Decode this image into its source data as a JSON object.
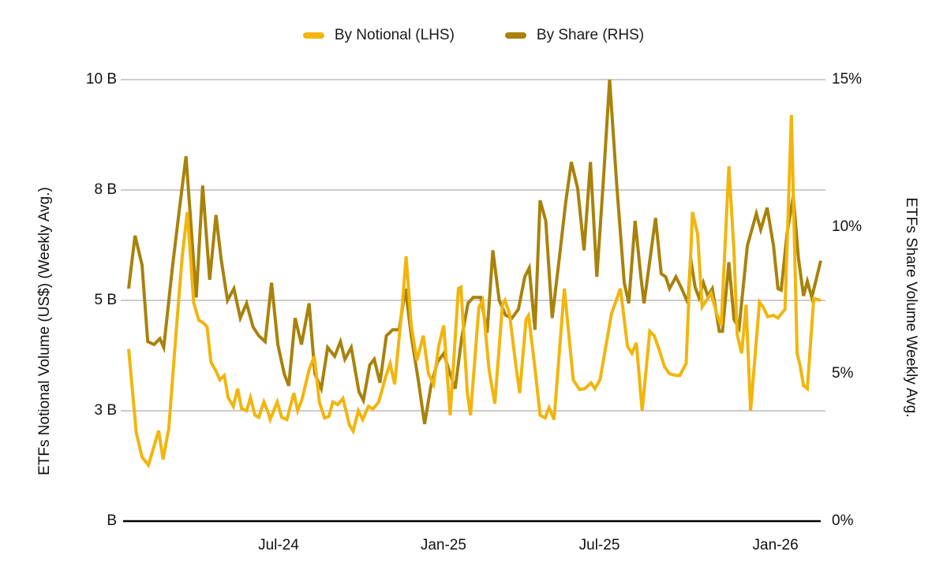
{
  "legend": [
    {
      "label": "By Notional (LHS)",
      "color": "#F2B50D",
      "series": "by_notional"
    },
    {
      "label": "By Share (RHS)",
      "color": "#A8820B",
      "series": "by_share"
    }
  ],
  "axes": {
    "left": {
      "title": "ETFs Notional Volume (US$) (Weekly Avg.)",
      "ticks": [
        {
          "label": "10 B",
          "value": 10
        },
        {
          "label": "8 B",
          "value": 7.5
        },
        {
          "label": "5 B",
          "value": 5
        },
        {
          "label": "3 B",
          "value": 2.5
        },
        {
          "label": "B",
          "value": 0
        }
      ]
    },
    "right": {
      "title": "ETFs Share Volume Weekly Avg.",
      "ticks": [
        {
          "label": "15%",
          "value": 15
        },
        {
          "label": "10%",
          "value": 10
        },
        {
          "label": "5%",
          "value": 5
        },
        {
          "label": "0%",
          "value": 0
        }
      ]
    },
    "x": {
      "ticks": [
        {
          "label": "Jul-24",
          "week": 23.5
        },
        {
          "label": "Jan-25",
          "week": 49.35
        },
        {
          "label": "Jul-25",
          "week": 73.8
        },
        {
          "label": "Jan-26",
          "week": 101.4
        }
      ]
    }
  },
  "chart_data": {
    "type": "line",
    "x_unit": "weeks from start of shown period (~Jan-2024 to ~Feb-2026)",
    "x_range": [
      0,
      108.5
    ],
    "grid": "horizontal",
    "legend_position": "top-center",
    "left_axis": {
      "label": "ETFs Notional Volume (US$) (Weekly Avg.)",
      "unit": "B US$",
      "range": [
        0,
        10
      ]
    },
    "right_axis": {
      "label": "ETFs Share Volume Weekly Avg.",
      "unit": "%",
      "range": [
        0,
        15
      ]
    },
    "series": [
      {
        "name": "By Share (RHS)",
        "axis": "right",
        "unit": "%",
        "color": "#A8820B",
        "points": [
          [
            0,
            7.9
          ],
          [
            1,
            9.7
          ],
          [
            2.1,
            8.7
          ],
          [
            3,
            6.1
          ],
          [
            4,
            6.0
          ],
          [
            4.9,
            6.2
          ],
          [
            5.5,
            5.9
          ],
          [
            6.9,
            8.7
          ],
          [
            7.9,
            10.5
          ],
          [
            9,
            12.4
          ],
          [
            10.6,
            7.6
          ],
          [
            11.6,
            11.4
          ],
          [
            12.7,
            8.2
          ],
          [
            13.7,
            10.4
          ],
          [
            14.5,
            8.9
          ],
          [
            15.5,
            7.5
          ],
          [
            16.5,
            7.9
          ],
          [
            17.5,
            6.9
          ],
          [
            18.5,
            7.4
          ],
          [
            19.5,
            6.6
          ],
          [
            20.4,
            6.3
          ],
          [
            21.4,
            6.1
          ],
          [
            22.4,
            8.1
          ],
          [
            23.4,
            6.0
          ],
          [
            24.4,
            5.0
          ],
          [
            25.1,
            4.6
          ],
          [
            26.1,
            6.9
          ],
          [
            27.1,
            6.0
          ],
          [
            28.3,
            7.4
          ],
          [
            29.2,
            5.0
          ],
          [
            30.2,
            4.5
          ],
          [
            31.2,
            5.9
          ],
          [
            32.3,
            5.6
          ],
          [
            33.2,
            6.1
          ],
          [
            33.9,
            5.5
          ],
          [
            34.9,
            5.9
          ],
          [
            36.1,
            4.4
          ],
          [
            36.8,
            4.1
          ],
          [
            37.8,
            5.3
          ],
          [
            38.5,
            5.5
          ],
          [
            39.4,
            4.7
          ],
          [
            40.4,
            6.3
          ],
          [
            41.4,
            6.5
          ],
          [
            42.4,
            6.5
          ],
          [
            43.4,
            7.9
          ],
          [
            44.3,
            6.3
          ],
          [
            45.4,
            4.8
          ],
          [
            46.4,
            3.3
          ],
          [
            47.4,
            4.6
          ],
          [
            48.4,
            5.4
          ],
          [
            49.4,
            5.7
          ],
          [
            50.4,
            5.0
          ],
          [
            51.2,
            4.5
          ],
          [
            52.2,
            6.2
          ],
          [
            53.2,
            7.4
          ],
          [
            54,
            7.6
          ],
          [
            55.2,
            7.6
          ],
          [
            56.2,
            6.4
          ],
          [
            57.1,
            9.2
          ],
          [
            58.1,
            7.5
          ],
          [
            59.1,
            7.0
          ],
          [
            60.1,
            6.9
          ],
          [
            61.1,
            7.2
          ],
          [
            62.1,
            8.3
          ],
          [
            62.8,
            8.6
          ],
          [
            63.7,
            6.5
          ],
          [
            64.5,
            10.9
          ],
          [
            65.4,
            10.2
          ],
          [
            66.4,
            6.9
          ],
          [
            67.5,
            8.9
          ],
          [
            68.5,
            10.8
          ],
          [
            69.4,
            12.2
          ],
          [
            70.4,
            11.3
          ],
          [
            71.4,
            9.2
          ],
          [
            72.4,
            12.2
          ],
          [
            73.4,
            8.3
          ],
          [
            74.4,
            11.5
          ],
          [
            75.4,
            15.0
          ],
          [
            76.5,
            11.5
          ],
          [
            77.7,
            8.1
          ],
          [
            78.4,
            7.4
          ],
          [
            79.4,
            10.2
          ],
          [
            80.3,
            8.3
          ],
          [
            80.8,
            7.4
          ],
          [
            82.6,
            10.3
          ],
          [
            83.5,
            8.4
          ],
          [
            84.2,
            8.3
          ],
          [
            84.8,
            7.9
          ],
          [
            85.8,
            8.3
          ],
          [
            86.7,
            7.9
          ],
          [
            87.7,
            7.4
          ],
          [
            88.1,
            8.95
          ],
          [
            88.8,
            7.95
          ],
          [
            89.4,
            7.6
          ],
          [
            90.1,
            8.1
          ],
          [
            90.8,
            7.65
          ],
          [
            91.5,
            7.9
          ],
          [
            92.6,
            6.45
          ],
          [
            93.1,
            6.45
          ],
          [
            94.1,
            8.8
          ],
          [
            94.9,
            6.85
          ],
          [
            95.7,
            6.55
          ],
          [
            97,
            9.35
          ],
          [
            98.4,
            10.45
          ],
          [
            99.1,
            9.9
          ],
          [
            100.1,
            10.65
          ],
          [
            101.1,
            9.35
          ],
          [
            101.8,
            7.9
          ],
          [
            102.3,
            7.85
          ],
          [
            103.2,
            9.75
          ],
          [
            104.2,
            11.05
          ],
          [
            105,
            8.95
          ],
          [
            105.8,
            7.65
          ],
          [
            106.4,
            8.15
          ],
          [
            107.1,
            7.6
          ],
          [
            108.5,
            8.85
          ]
        ]
      },
      {
        "name": "By Notional (LHS)",
        "axis": "left",
        "unit": "B US$",
        "color": "#F2B50D",
        "points": [
          [
            0,
            3.9
          ],
          [
            1.2,
            2.0
          ],
          [
            2.1,
            1.45
          ],
          [
            3.1,
            1.27
          ],
          [
            4.7,
            2.05
          ],
          [
            5.4,
            1.4
          ],
          [
            6.3,
            2.1
          ],
          [
            7.4,
            4.2
          ],
          [
            8.4,
            6.0
          ],
          [
            9.2,
            7.0
          ],
          [
            10.2,
            4.95
          ],
          [
            11,
            4.55
          ],
          [
            11.6,
            4.5
          ],
          [
            12.3,
            4.4
          ],
          [
            12.9,
            3.6
          ],
          [
            13.7,
            3.4
          ],
          [
            14.3,
            3.2
          ],
          [
            15,
            3.3
          ],
          [
            15.6,
            2.8
          ],
          [
            16.4,
            2.6
          ],
          [
            17.1,
            3.0
          ],
          [
            17.7,
            2.55
          ],
          [
            18.5,
            2.5
          ],
          [
            19.1,
            2.8
          ],
          [
            19.8,
            2.4
          ],
          [
            20.4,
            2.35
          ],
          [
            21.2,
            2.7
          ],
          [
            21.9,
            2.45
          ],
          [
            22.2,
            2.3
          ],
          [
            23.3,
            2.7
          ],
          [
            24,
            2.35
          ],
          [
            24.8,
            2.3
          ],
          [
            25.9,
            2.9
          ],
          [
            26.5,
            2.5
          ],
          [
            27.2,
            2.77
          ],
          [
            28.3,
            3.43
          ],
          [
            29.1,
            3.73
          ],
          [
            29.9,
            2.7
          ],
          [
            30.7,
            2.34
          ],
          [
            31.4,
            2.37
          ],
          [
            32,
            2.7
          ],
          [
            32.8,
            2.64
          ],
          [
            33.6,
            2.78
          ],
          [
            34.6,
            2.18
          ],
          [
            35.2,
            2.04
          ],
          [
            36,
            2.5
          ],
          [
            36.7,
            2.3
          ],
          [
            37.6,
            2.6
          ],
          [
            38.3,
            2.54
          ],
          [
            39.2,
            2.7
          ],
          [
            40.3,
            3.27
          ],
          [
            41,
            3.57
          ],
          [
            41.7,
            3.1
          ],
          [
            42.9,
            4.9
          ],
          [
            43.5,
            6.0
          ],
          [
            44.3,
            4.43
          ],
          [
            45.2,
            3.64
          ],
          [
            46.2,
            4.2
          ],
          [
            47,
            3.34
          ],
          [
            47.8,
            3.1
          ],
          [
            48.6,
            3.96
          ],
          [
            49.4,
            4.43
          ],
          [
            50.4,
            2.4
          ],
          [
            51.7,
            5.27
          ],
          [
            52.1,
            5.3
          ],
          [
            53.1,
            2.9
          ],
          [
            53.6,
            2.4
          ],
          [
            54.9,
            4.84
          ],
          [
            55.5,
            5.0
          ],
          [
            56.5,
            3.43
          ],
          [
            57.4,
            2.66
          ],
          [
            58.6,
            4.9
          ],
          [
            59,
            5.0
          ],
          [
            59.7,
            4.7
          ],
          [
            60.7,
            3.54
          ],
          [
            61.3,
            2.9
          ],
          [
            62.3,
            4.57
          ],
          [
            62.7,
            4.66
          ],
          [
            63.7,
            3.46
          ],
          [
            64.5,
            2.4
          ],
          [
            65.3,
            2.34
          ],
          [
            65.9,
            2.57
          ],
          [
            66.7,
            2.3
          ],
          [
            68.3,
            5.27
          ],
          [
            69.7,
            3.2
          ],
          [
            70.7,
            2.98
          ],
          [
            71.5,
            3.0
          ],
          [
            72.5,
            3.13
          ],
          [
            73.1,
            3.0
          ],
          [
            73.9,
            3.2
          ],
          [
            75.7,
            4.7
          ],
          [
            77.1,
            5.27
          ],
          [
            78.2,
            3.96
          ],
          [
            78.9,
            3.8
          ],
          [
            79.6,
            4.04
          ],
          [
            80.5,
            2.5
          ],
          [
            81.7,
            4.3
          ],
          [
            82.4,
            4.2
          ],
          [
            83.2,
            3.87
          ],
          [
            84,
            3.5
          ],
          [
            84.8,
            3.34
          ],
          [
            85.8,
            3.3
          ],
          [
            86.4,
            3.3
          ],
          [
            87.4,
            3.57
          ],
          [
            88.4,
            7.0
          ],
          [
            89.2,
            6.5
          ],
          [
            89.9,
            4.85
          ],
          [
            91.3,
            5.16
          ],
          [
            92.2,
            4.7
          ],
          [
            92.9,
            4.43
          ],
          [
            94.1,
            8.04
          ],
          [
            94.9,
            6.1
          ],
          [
            95.4,
            4.23
          ],
          [
            96.1,
            3.8
          ],
          [
            96.8,
            4.9
          ],
          [
            97.5,
            2.5
          ],
          [
            98.9,
            4.96
          ],
          [
            99.5,
            4.84
          ],
          [
            100.2,
            4.63
          ],
          [
            101.1,
            4.66
          ],
          [
            101.8,
            4.6
          ],
          [
            102.9,
            4.8
          ],
          [
            103.9,
            9.2
          ],
          [
            104.8,
            3.8
          ],
          [
            105.3,
            3.5
          ],
          [
            105.8,
            3.07
          ],
          [
            106.4,
            3.0
          ],
          [
            107.4,
            5.04
          ],
          [
            108.5,
            5.0
          ]
        ]
      }
    ],
    "style": {
      "gridline_color": "#cccccc",
      "axis_line_color": "#000000",
      "line_width": 4
    }
  }
}
